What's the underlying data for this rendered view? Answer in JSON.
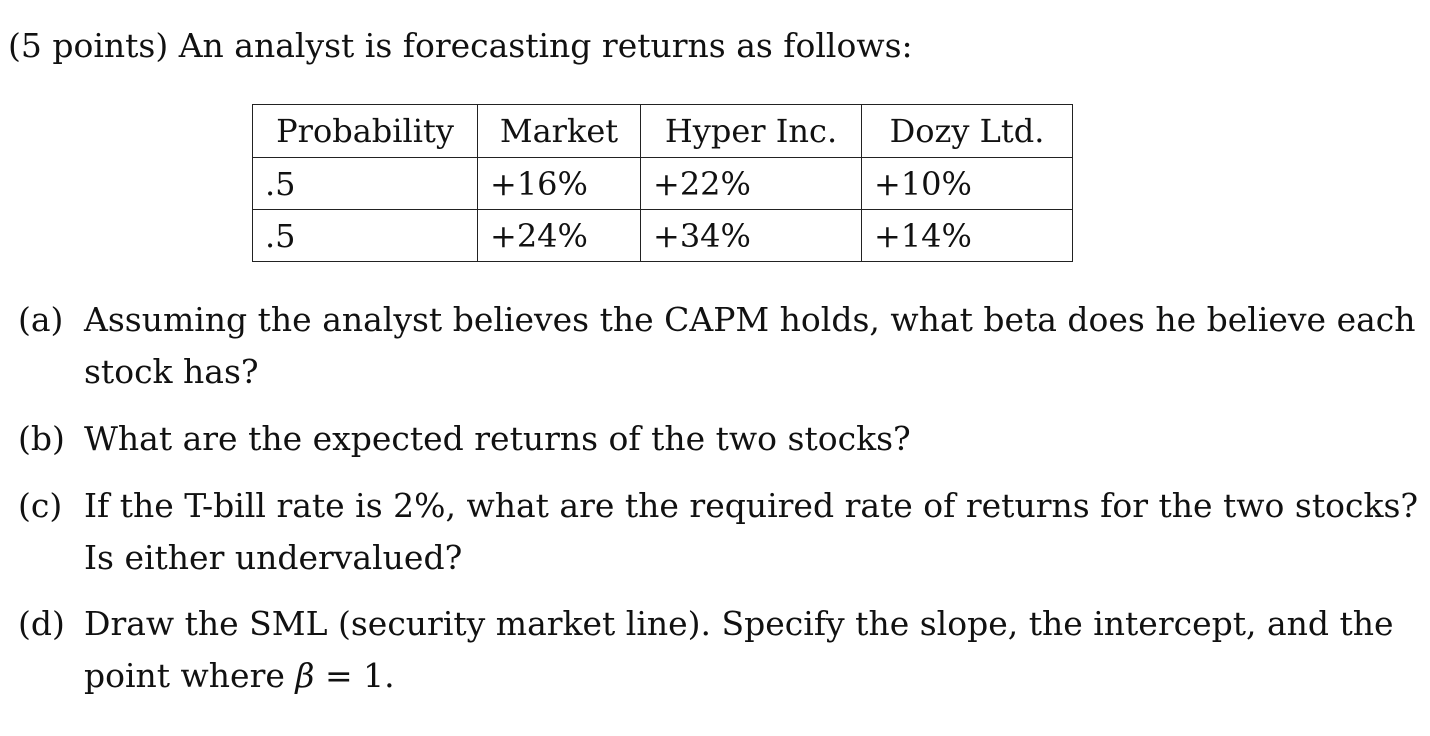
{
  "intro": "(5 points) An analyst is forecasting returns as follows:",
  "table": {
    "headers": [
      "Probability",
      "Market",
      "Hyper Inc.",
      "Dozy Ltd."
    ],
    "rows": [
      [
        ".5",
        "+16%",
        "+22%",
        "+10%"
      ],
      [
        ".5",
        "+24%",
        "+34%",
        "+14%"
      ]
    ]
  },
  "questions": {
    "a": {
      "label": "(a)",
      "line1": "Assuming the analyst believes the CAPM holds, what beta does he believe each",
      "line2": "stock has?"
    },
    "b": {
      "label": "(b)",
      "line1": "What are the expected returns of the two stocks?"
    },
    "c": {
      "label": "(c)",
      "line1": "If the T-bill rate is 2%, what are the required rate of returns for the two stocks?",
      "line2": "Is either undervalued?"
    },
    "d": {
      "label": "(d)",
      "line1": "Draw the SML (security market line). Specify the slope, the intercept, and the",
      "line2_prefix": "point where ",
      "line2_symbol": "β",
      "line2_suffix": " = 1."
    }
  }
}
